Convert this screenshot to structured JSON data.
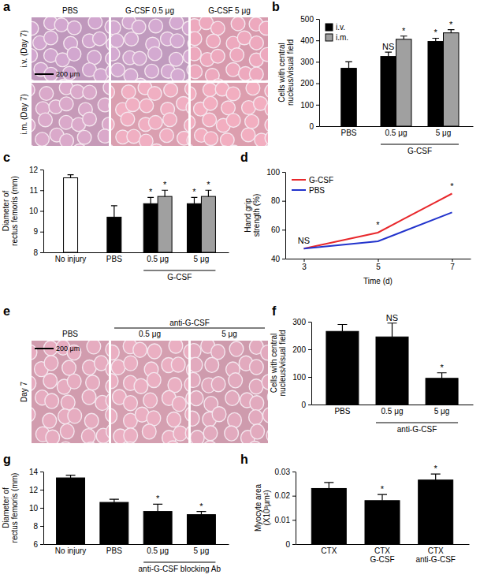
{
  "chart_data": [
    {
      "panel_label": "b",
      "type": "bar",
      "categories": [
        "PBS",
        "0.5 μg",
        "5 μg"
      ],
      "category_groups": [
        null,
        "G-CSF",
        "G-CSF"
      ],
      "y_label": "Cells with central\nnucleus/visual field",
      "ylim": [
        0,
        500
      ],
      "yticks": [
        0,
        100,
        200,
        300,
        400,
        500
      ],
      "legend": "top-left",
      "series": [
        {
          "name": "i.v.",
          "color": "#000000",
          "values": [
            270,
            325,
            395
          ],
          "errors": [
            30,
            20,
            15
          ],
          "significance": [
            null,
            "NS",
            "*"
          ]
        },
        {
          "name": "i.m.",
          "color": "#a0a0a0",
          "values": [
            null,
            405,
            435
          ],
          "errors": [
            null,
            15,
            15
          ],
          "significance": [
            null,
            "*",
            "*"
          ]
        }
      ]
    },
    {
      "panel_label": "c",
      "type": "bar",
      "categories": [
        "No injury",
        "PBS",
        "0.5 μg",
        "5 μg"
      ],
      "category_groups": [
        null,
        null,
        "G-CSF",
        "G-CSF"
      ],
      "y_label": "Diameter of\nrectus femoris (mm)",
      "ylim": [
        8,
        12
      ],
      "yticks": [
        8,
        9,
        10,
        11,
        12
      ],
      "series": [
        {
          "colors": [
            "#ffffff",
            "#000000",
            "#000000",
            "#000000"
          ],
          "values": [
            11.6,
            9.7,
            10.35,
            10.35
          ],
          "errors": [
            0.15,
            0.55,
            0.3,
            0.3
          ],
          "significance": [
            null,
            null,
            "*",
            "*"
          ]
        },
        {
          "color": "#a0a0a0",
          "values": [
            null,
            null,
            10.7,
            10.7
          ],
          "errors": [
            null,
            null,
            0.3,
            0.3
          ],
          "significance": [
            null,
            null,
            "*",
            "*"
          ]
        }
      ]
    },
    {
      "panel_label": "d",
      "type": "line",
      "x": [
        3,
        5,
        7
      ],
      "xlim": [
        2.5,
        7.5
      ],
      "xticks": [
        3,
        5,
        7
      ],
      "x_label": "Time (d)",
      "y_label": "Hand grip\nstrength (%)",
      "ylim": [
        40,
        100
      ],
      "yticks": [
        40,
        60,
        80,
        100
      ],
      "legend": "top-left",
      "significance": [
        "NS",
        "*",
        "*"
      ],
      "series": [
        {
          "name": "G-CSF",
          "color": "#e8282c",
          "values": [
            47,
            58,
            85
          ]
        },
        {
          "name": "PBS",
          "color": "#2233cc",
          "values": [
            47,
            52,
            72
          ]
        }
      ]
    },
    {
      "panel_label": "f",
      "type": "bar",
      "categories": [
        "PBS",
        "0.5 μg",
        "5 μg"
      ],
      "category_groups": [
        null,
        "anti-G-CSF",
        "anti-G-CSF"
      ],
      "y_label": "Cells with central\nnucleus/visual field",
      "ylim": [
        0,
        300
      ],
      "yticks": [
        0,
        100,
        200,
        300
      ],
      "series": [
        {
          "color": "#000000",
          "values": [
            265,
            245,
            95
          ],
          "errors": [
            25,
            50,
            20
          ],
          "significance": [
            null,
            "NS",
            "*"
          ]
        }
      ]
    },
    {
      "panel_label": "g",
      "type": "bar",
      "categories": [
        "No injury",
        "PBS",
        "0.5 μg",
        "5 μg"
      ],
      "category_groups": [
        null,
        null,
        "anti-G-CSF blocking Ab",
        "anti-G-CSF blocking Ab"
      ],
      "y_label": "Diameter of\nrectus femoris (mm)",
      "ylim": [
        6,
        14
      ],
      "yticks": [
        6,
        8,
        10,
        12,
        14
      ],
      "series": [
        {
          "color": "#000000",
          "values": [
            13.3,
            10.6,
            9.6,
            9.25
          ],
          "errors": [
            0.3,
            0.35,
            0.8,
            0.35
          ],
          "significance": [
            null,
            null,
            "*",
            "*"
          ]
        }
      ]
    },
    {
      "panel_label": "h",
      "type": "bar",
      "categories": [
        "CTX",
        "CTX\nG-CSF",
        "CTX\nanti-G-CSF"
      ],
      "y_label": "Myocyte area\n(X10³μm²)",
      "ylim": [
        0,
        0.03
      ],
      "yticks": [
        0,
        0.01,
        0.02,
        0.03
      ],
      "series": [
        {
          "color": "#000000",
          "values": [
            0.023,
            0.018,
            0.0265
          ],
          "errors": [
            0.0025,
            0.0025,
            0.0025
          ],
          "significance": [
            null,
            "*",
            "*"
          ]
        }
      ]
    }
  ],
  "images": [
    {
      "panel_label": "a",
      "columns": [
        "PBS",
        "G-CSF 0.5 μg",
        "G-CSF 5 μg"
      ],
      "rows": [
        "i.v. (Day 7)",
        "i.m. (Day 7)"
      ],
      "scale_bar": "200 μm"
    },
    {
      "panel_label": "e",
      "columns": [
        "PBS",
        "0.5 μg",
        "5 μg"
      ],
      "column_groups": [
        null,
        "anti-G-CSF",
        "anti-G-CSF"
      ],
      "rows": [
        "Day 7"
      ],
      "scale_bar": "200 μm"
    }
  ]
}
